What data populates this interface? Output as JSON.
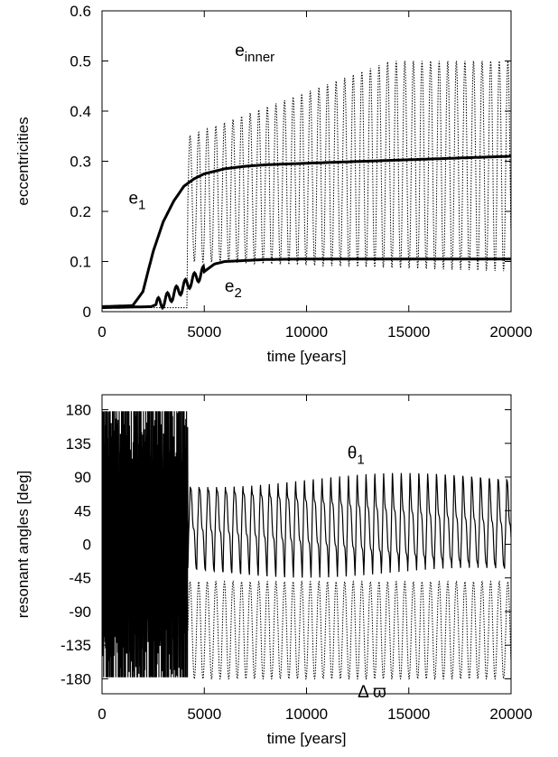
{
  "chart_data": [
    {
      "type": "line",
      "xlabel": "time [years]",
      "ylabel": "eccentricities",
      "xlim": [
        0,
        20000
      ],
      "ylim": [
        0,
        0.6
      ],
      "xticks": [
        0,
        5000,
        10000,
        15000,
        20000
      ],
      "xtick_labels": [
        "0",
        "5000",
        "10000",
        "15000",
        "20000"
      ],
      "yticks": [
        0,
        0.1,
        0.2,
        0.3,
        0.4,
        0.5,
        0.6
      ],
      "ytick_labels": [
        "0",
        "0.1",
        "0.2",
        "0.3",
        "0.4",
        "0.5",
        "0.6"
      ],
      "grid": false,
      "legend": "none",
      "annotations": [
        {
          "base": "e",
          "sub": "inner",
          "x": 6500,
          "y": 0.51
        },
        {
          "base": "e",
          "sub": "1",
          "x": 1300,
          "y": 0.215
        },
        {
          "base": "e",
          "sub": "2",
          "x": 6000,
          "y": 0.04
        }
      ],
      "series": [
        {
          "curve": "e1",
          "style": "solid",
          "x": [
            0,
            1500,
            2000,
            2500,
            3000,
            3500,
            4000,
            4500,
            5000,
            6000,
            7000,
            8000,
            10000,
            15000,
            20000
          ],
          "y": [
            0.01,
            0.012,
            0.04,
            0.12,
            0.18,
            0.22,
            0.25,
            0.265,
            0.275,
            0.285,
            0.29,
            0.293,
            0.296,
            0.303,
            0.31
          ]
        },
        {
          "curve": "e2",
          "style": "solid",
          "x": [
            0,
            2400,
            3000,
            3500,
            4000,
            4500,
            5000,
            5500,
            6000,
            7000,
            8000,
            10000,
            20000
          ],
          "y": [
            0.008,
            0.01,
            0.02,
            0.035,
            0.05,
            0.065,
            0.08,
            0.095,
            0.1,
            0.102,
            0.104,
            0.105,
            0.105
          ]
        },
        {
          "curve": "e_inner",
          "style": "dotted",
          "x_start": 4200,
          "x_end": 20000,
          "min": [
            0.1,
            0.08
          ],
          "max": [
            0.35,
            0.5
          ],
          "period": 420
        }
      ]
    },
    {
      "type": "line",
      "xlabel": "time [years]",
      "ylabel": "resonant angles [deg]",
      "xlim": [
        0,
        20000
      ],
      "ylim": [
        -200,
        200
      ],
      "xticks": [
        0,
        5000,
        10000,
        15000,
        20000
      ],
      "xtick_labels": [
        "0",
        "5000",
        "10000",
        "15000",
        "20000"
      ],
      "yticks": [
        180,
        135,
        90,
        45,
        0,
        -45,
        -90,
        -135,
        -180
      ],
      "ytick_labels": [
        "180",
        "135",
        "90",
        "45",
        "0",
        "-45",
        "-90",
        "-135",
        "-180"
      ],
      "grid": false,
      "legend": "none",
      "annotations": [
        {
          "label": "θ",
          "sub": "1",
          "x": 12000,
          "y": 115
        },
        {
          "label": "Δ ϖ",
          "x": 12500,
          "y": -205
        }
      ],
      "series": [
        {
          "curve": "theta1",
          "style": "solid",
          "circulating": {
            "x_start": 0,
            "x_end": 4200,
            "range": [
              -180,
              180
            ]
          },
          "librating": {
            "x_start": 4200,
            "x_end": 20000,
            "center": 25,
            "amplitude_start": 60,
            "amplitude_end": 65,
            "period": 430
          }
        },
        {
          "curve": "delta_varpi",
          "style": "dotted",
          "x_start": 4200,
          "x_end": 20000,
          "min": -180,
          "max": -50,
          "period": 420
        }
      ]
    }
  ]
}
